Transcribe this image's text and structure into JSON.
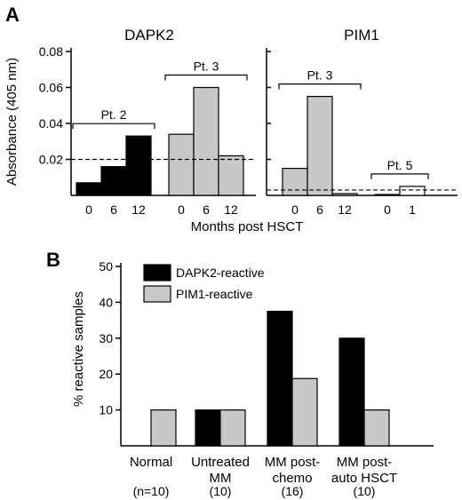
{
  "panel_a": {
    "letter": "A",
    "ylabel": "Absorbance (405 nm)",
    "xlabel": "Months post HSCT",
    "threshold_dapk2": 0.02,
    "threshold_pim1": 0.003,
    "y_ticks": [
      "0.02",
      "0.04",
      "0.06",
      "0.08"
    ],
    "dapk2": {
      "title": "DAPK2",
      "groups": [
        {
          "label": "Pt. 2",
          "bars": [
            {
              "x": "0",
              "y": 0.007
            },
            {
              "x": "6",
              "y": 0.016
            },
            {
              "x": "12",
              "y": 0.033
            }
          ],
          "color": "#000000"
        },
        {
          "label": "Pt. 3",
          "bars": [
            {
              "x": "0",
              "y": 0.034
            },
            {
              "x": "6",
              "y": 0.06
            },
            {
              "x": "12",
              "y": 0.022
            }
          ],
          "color": "#c8c8c8"
        }
      ]
    },
    "pim1": {
      "title": "PIM1",
      "groups": [
        {
          "label": "Pt. 3",
          "bars": [
            {
              "x": "0",
              "y": 0.015
            },
            {
              "x": "6",
              "y": 0.055
            },
            {
              "x": "12",
              "y": 0.001
            }
          ],
          "color": "#c8c8c8"
        },
        {
          "label": "Pt. 5",
          "bars": [
            {
              "x": "0",
              "y": 0.0005
            },
            {
              "x": "1",
              "y": 0.005
            }
          ],
          "color": "#ffffff"
        }
      ]
    }
  },
  "panel_b": {
    "letter": "B",
    "ylabel": "% reactive samples",
    "y_ticks": [
      "10",
      "20",
      "30",
      "40",
      "50"
    ],
    "legend": [
      {
        "name": "DAPK2-reactive",
        "color": "#000000"
      },
      {
        "name": "PIM1-reactive",
        "color": "#c8c8c8"
      }
    ],
    "categories": [
      {
        "line1": "Normal",
        "line2": "",
        "n": "(n=10)"
      },
      {
        "line1": "Untreated",
        "line2": "MM",
        "n": "(10)"
      },
      {
        "line1": "MM post-",
        "line2": "chemo",
        "n": "(16)"
      },
      {
        "line1": "MM post-",
        "line2": "auto HSCT",
        "n": "(10)"
      }
    ]
  },
  "chart_data": [
    {
      "type": "bar",
      "title": "DAPK2",
      "ylabel": "Absorbance (405 nm)",
      "xlabel": "Months post HSCT",
      "ylim": [
        0,
        0.08
      ],
      "series": [
        {
          "name": "Pt. 2",
          "x": [
            "0",
            "6",
            "12"
          ],
          "values": [
            0.007,
            0.016,
            0.033
          ]
        },
        {
          "name": "Pt. 3",
          "x": [
            "0",
            "6",
            "12"
          ],
          "values": [
            0.034,
            0.06,
            0.022
          ]
        }
      ],
      "threshold": 0.02
    },
    {
      "type": "bar",
      "title": "PIM1",
      "xlabel": "Months post HSCT",
      "ylim": [
        0,
        0.08
      ],
      "series": [
        {
          "name": "Pt. 3",
          "x": [
            "0",
            "6",
            "12"
          ],
          "values": [
            0.015,
            0.055,
            0.001
          ]
        },
        {
          "name": "Pt. 5",
          "x": [
            "0",
            "1"
          ],
          "values": [
            0.0005,
            0.005
          ]
        }
      ],
      "threshold": 0.003
    },
    {
      "type": "bar",
      "ylabel": "% reactive samples",
      "ylim": [
        0,
        50
      ],
      "categories": [
        "Normal",
        "Untreated MM",
        "MM post-chemo",
        "MM post-auto HSCT"
      ],
      "series": [
        {
          "name": "DAPK2-reactive",
          "values": [
            0,
            10,
            37.5,
            30
          ]
        },
        {
          "name": "PIM1-reactive",
          "values": [
            10,
            10,
            18.75,
            10
          ]
        }
      ]
    }
  ]
}
